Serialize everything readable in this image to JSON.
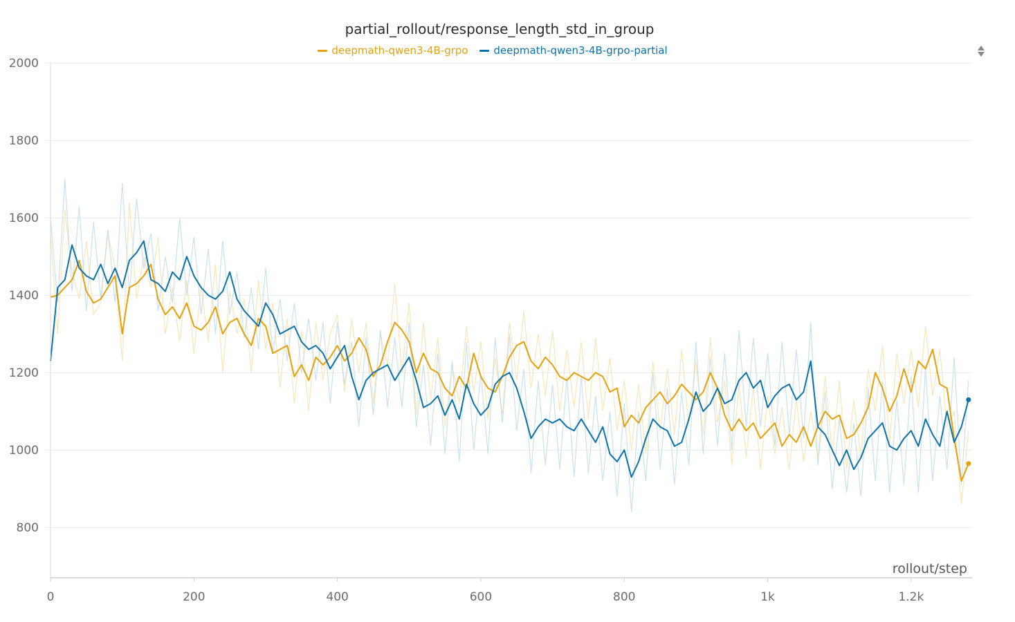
{
  "chart_data": {
    "type": "line",
    "title": "partial_rollout/response_length_std_in_group",
    "xlabel": "rollout/step",
    "ylabel": "",
    "xlim": [
      0,
      1285
    ],
    "ylim": [
      670,
      2020
    ],
    "x_ticks": [
      {
        "value": 0,
        "label": "0"
      },
      {
        "value": 200,
        "label": "200"
      },
      {
        "value": 400,
        "label": "400"
      },
      {
        "value": 600,
        "label": "600"
      },
      {
        "value": 800,
        "label": "800"
      },
      {
        "value": 1000,
        "label": "1k"
      },
      {
        "value": 1200,
        "label": "1.2k"
      }
    ],
    "y_ticks": [
      {
        "value": 800,
        "label": "800"
      },
      {
        "value": 1000,
        "label": "1000"
      },
      {
        "value": 1200,
        "label": "1200"
      },
      {
        "value": 1400,
        "label": "1400"
      },
      {
        "value": 1600,
        "label": "1600"
      },
      {
        "value": 1800,
        "label": "1800"
      },
      {
        "value": 2000,
        "label": "2000"
      }
    ],
    "grid": true,
    "legend_position": "top-center",
    "series": [
      {
        "name": "deepmath-qwen3-4B-grpo",
        "color": "#E5A00D",
        "raw_color": "#F6DDA0",
        "x": [
          0,
          10,
          20,
          30,
          40,
          50,
          60,
          70,
          80,
          90,
          100,
          110,
          120,
          130,
          140,
          150,
          160,
          170,
          180,
          190,
          200,
          210,
          220,
          230,
          240,
          250,
          260,
          270,
          280,
          290,
          300,
          310,
          320,
          330,
          340,
          350,
          360,
          370,
          380,
          390,
          400,
          410,
          420,
          430,
          440,
          450,
          460,
          470,
          480,
          490,
          500,
          510,
          520,
          530,
          540,
          550,
          560,
          570,
          580,
          590,
          600,
          610,
          620,
          630,
          640,
          650,
          660,
          670,
          680,
          690,
          700,
          710,
          720,
          730,
          740,
          750,
          760,
          770,
          780,
          790,
          800,
          810,
          820,
          830,
          840,
          850,
          860,
          870,
          880,
          890,
          900,
          910,
          920,
          930,
          940,
          950,
          960,
          970,
          980,
          990,
          1000,
          1010,
          1020,
          1030,
          1040,
          1050,
          1060,
          1070,
          1080,
          1090,
          1100,
          1110,
          1120,
          1130,
          1140,
          1150,
          1160,
          1170,
          1180,
          1190,
          1200,
          1210,
          1220,
          1230,
          1240,
          1250,
          1260,
          1270,
          1280
        ],
        "values": [
          1395,
          1400,
          1420,
          1440,
          1490,
          1410,
          1380,
          1390,
          1420,
          1450,
          1300,
          1420,
          1430,
          1450,
          1480,
          1390,
          1350,
          1370,
          1340,
          1380,
          1320,
          1310,
          1330,
          1370,
          1300,
          1330,
          1340,
          1300,
          1270,
          1340,
          1320,
          1250,
          1260,
          1270,
          1190,
          1220,
          1180,
          1240,
          1220,
          1240,
          1270,
          1230,
          1250,
          1290,
          1260,
          1190,
          1220,
          1280,
          1330,
          1310,
          1280,
          1200,
          1250,
          1210,
          1200,
          1160,
          1140,
          1190,
          1160,
          1250,
          1190,
          1160,
          1150,
          1190,
          1240,
          1270,
          1280,
          1230,
          1210,
          1240,
          1220,
          1190,
          1180,
          1200,
          1190,
          1180,
          1200,
          1190,
          1150,
          1160,
          1060,
          1090,
          1070,
          1110,
          1130,
          1150,
          1120,
          1140,
          1170,
          1150,
          1130,
          1150,
          1200,
          1160,
          1090,
          1050,
          1080,
          1050,
          1070,
          1030,
          1050,
          1070,
          1010,
          1040,
          1020,
          1060,
          1010,
          1060,
          1100,
          1080,
          1090,
          1030,
          1040,
          1070,
          1110,
          1200,
          1160,
          1100,
          1140,
          1210,
          1150,
          1230,
          1210,
          1260,
          1170,
          1160,
          1030,
          920,
          965
        ],
        "raw_values": [
          1560,
          1300,
          1620,
          1460,
          1390,
          1540,
          1350,
          1380,
          1560,
          1470,
          1230,
          1640,
          1390,
          1500,
          1420,
          1550,
          1300,
          1420,
          1280,
          1440,
          1250,
          1420,
          1280,
          1480,
          1200,
          1410,
          1300,
          1390,
          1200,
          1440,
          1260,
          1380,
          1160,
          1340,
          1120,
          1310,
          1100,
          1330,
          1180,
          1300,
          1350,
          1150,
          1340,
          1200,
          1330,
          1120,
          1300,
          1220,
          1430,
          1200,
          1380,
          1090,
          1330,
          1130,
          1290,
          1060,
          1220,
          1120,
          1320,
          1150,
          1280,
          1080,
          1240,
          1090,
          1330,
          1180,
          1360,
          1160,
          1300,
          1140,
          1310,
          1100,
          1260,
          1110,
          1280,
          1080,
          1290,
          1100,
          1240,
          1050,
          1180,
          1000,
          1170,
          990,
          1230,
          1050,
          1210,
          1040,
          1260,
          1060,
          1230,
          1040,
          1290,
          1070,
          1180,
          960,
          1170,
          980,
          1160,
          950,
          1140,
          990,
          1110,
          950,
          1130,
          970,
          1100,
          980,
          1190,
          990,
          1180,
          950,
          1130,
          980,
          1210,
          1100,
          1270,
          1020,
          1250,
          1120,
          1260,
          1110,
          1320,
          1140,
          1260,
          1060,
          1100,
          860,
          1050
        ]
      },
      {
        "name": "deepmath-qwen3-4B-grpo-partial",
        "color": "#0C72A8",
        "raw_color": "#B5D8EA",
        "x": [
          0,
          10,
          20,
          30,
          40,
          50,
          60,
          70,
          80,
          90,
          100,
          110,
          120,
          130,
          140,
          150,
          160,
          170,
          180,
          190,
          200,
          210,
          220,
          230,
          240,
          250,
          260,
          270,
          280,
          290,
          300,
          310,
          320,
          330,
          340,
          350,
          360,
          370,
          380,
          390,
          400,
          410,
          420,
          430,
          440,
          450,
          460,
          470,
          480,
          490,
          500,
          510,
          520,
          530,
          540,
          550,
          560,
          570,
          580,
          590,
          600,
          610,
          620,
          630,
          640,
          650,
          660,
          670,
          680,
          690,
          700,
          710,
          720,
          730,
          740,
          750,
          760,
          770,
          780,
          790,
          800,
          810,
          820,
          830,
          840,
          850,
          860,
          870,
          880,
          890,
          900,
          910,
          920,
          930,
          940,
          950,
          960,
          970,
          980,
          990,
          1000,
          1010,
          1020,
          1030,
          1040,
          1050,
          1060,
          1070,
          1080,
          1090,
          1100,
          1110,
          1120,
          1130,
          1140,
          1150,
          1160,
          1170,
          1180,
          1190,
          1200,
          1210,
          1220,
          1230,
          1240,
          1250,
          1260,
          1270,
          1280
        ],
        "values": [
          1230,
          1420,
          1440,
          1530,
          1470,
          1450,
          1440,
          1480,
          1430,
          1470,
          1420,
          1490,
          1510,
          1540,
          1440,
          1430,
          1410,
          1460,
          1440,
          1500,
          1450,
          1420,
          1400,
          1390,
          1410,
          1460,
          1390,
          1360,
          1340,
          1320,
          1380,
          1350,
          1300,
          1310,
          1320,
          1280,
          1260,
          1270,
          1250,
          1210,
          1240,
          1270,
          1190,
          1130,
          1180,
          1200,
          1210,
          1220,
          1180,
          1210,
          1240,
          1180,
          1110,
          1120,
          1140,
          1090,
          1130,
          1080,
          1170,
          1120,
          1090,
          1110,
          1170,
          1190,
          1200,
          1160,
          1100,
          1030,
          1060,
          1080,
          1070,
          1080,
          1060,
          1050,
          1080,
          1050,
          1020,
          1060,
          990,
          970,
          1000,
          930,
          970,
          1030,
          1080,
          1060,
          1050,
          1010,
          1020,
          1080,
          1150,
          1100,
          1120,
          1160,
          1120,
          1130,
          1180,
          1200,
          1160,
          1180,
          1110,
          1140,
          1160,
          1170,
          1130,
          1150,
          1230,
          1060,
          1040,
          1000,
          960,
          1000,
          950,
          980,
          1030,
          1050,
          1070,
          1010,
          1000,
          1030,
          1050,
          1010,
          1080,
          1040,
          1010,
          1100,
          1020,
          1060,
          1130
        ],
        "raw_values": [
          1600,
          1380,
          1700,
          1410,
          1630,
          1360,
          1590,
          1390,
          1570,
          1380,
          1690,
          1400,
          1650,
          1470,
          1560,
          1360,
          1500,
          1380,
          1600,
          1400,
          1550,
          1350,
          1520,
          1300,
          1540,
          1350,
          1460,
          1290,
          1420,
          1260,
          1470,
          1250,
          1390,
          1230,
          1380,
          1200,
          1340,
          1180,
          1330,
          1120,
          1330,
          1170,
          1280,
          1060,
          1290,
          1090,
          1310,
          1110,
          1290,
          1110,
          1330,
          1060,
          1220,
          1010,
          1250,
          990,
          1230,
          970,
          1280,
          1000,
          1200,
          990,
          1290,
          1070,
          1300,
          1050,
          1210,
          940,
          1180,
          960,
          1170,
          950,
          1190,
          930,
          1190,
          940,
          1140,
          920,
          1100,
          880,
          1120,
          840,
          1100,
          920,
          1200,
          950,
          1160,
          910,
          1150,
          960,
          1280,
          990,
          1240,
          1010,
          1250,
          1000,
          1310,
          1060,
          1290,
          1060,
          1250,
          1010,
          1280,
          1040,
          1260,
          1030,
          1330,
          960,
          1150,
          900,
          1080,
          890,
          1070,
          880,
          1160,
          920,
          1180,
          890,
          1130,
          910,
          1190,
          890,
          1210,
          920,
          1140,
          950,
          1240,
          910,
          1180
        ]
      }
    ]
  },
  "icons": {
    "sort": "sort-arrows-icon"
  }
}
